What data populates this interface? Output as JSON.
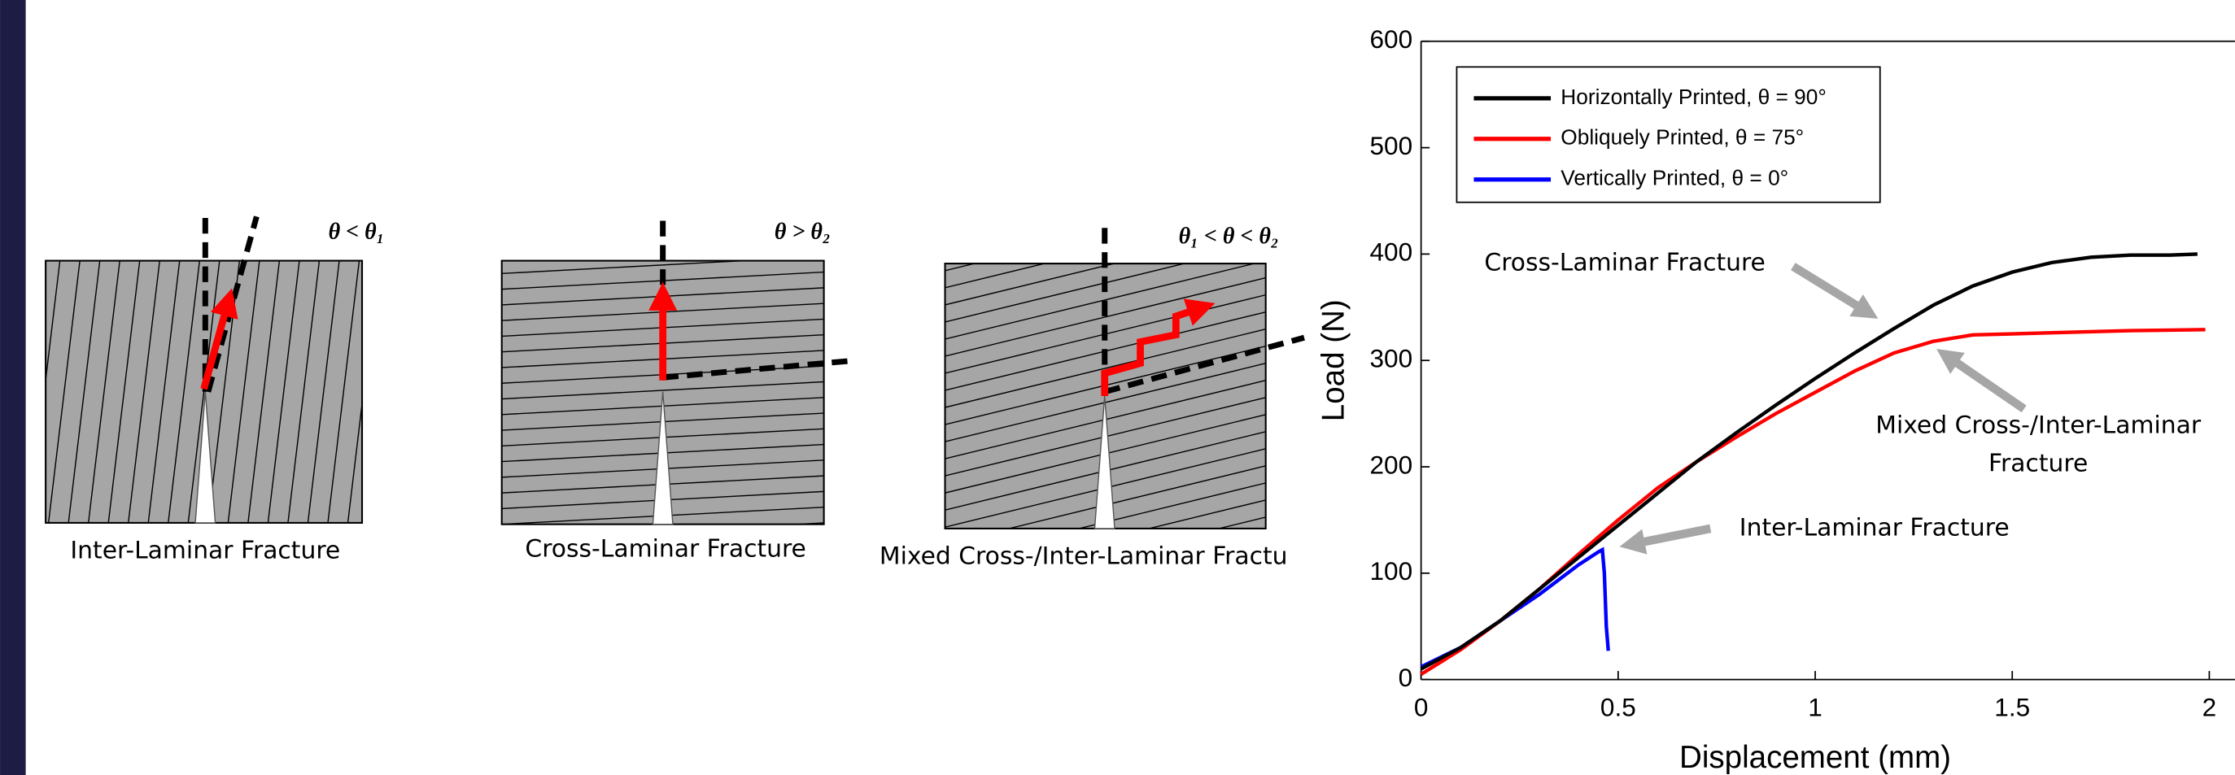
{
  "diagrams": [
    {
      "condition": "θ < θ₁",
      "caption": "Inter-Laminar Fracture"
    },
    {
      "condition": "θ > θ₂",
      "caption": "Cross-Laminar Fracture"
    },
    {
      "condition": "θ₁ < θ < θ₂",
      "caption": "Mixed Cross-/Inter-Laminar Fractu"
    }
  ],
  "chart_data": {
    "type": "line",
    "xlabel": "Displacement (mm)",
    "ylabel": "Load (N)",
    "xlim": [
      0,
      2.05
    ],
    "ylim": [
      0,
      600
    ],
    "xticks": [
      0,
      0.5,
      1,
      1.5,
      2
    ],
    "yticks": [
      0,
      100,
      200,
      300,
      400,
      500,
      600
    ],
    "grid": false,
    "legend": "upper left",
    "series": [
      {
        "name": "Horizontally Printed, θ = 90°",
        "color": "#000000",
        "x": [
          0,
          0.1,
          0.2,
          0.3,
          0.4,
          0.5,
          0.6,
          0.7,
          0.8,
          0.9,
          1.0,
          1.1,
          1.2,
          1.3,
          1.4,
          1.5,
          1.6,
          1.7,
          1.8,
          1.9,
          1.97
        ],
        "values": [
          10,
          30,
          55,
          85,
          115,
          145,
          175,
          205,
          232,
          258,
          283,
          307,
          330,
          352,
          370,
          383,
          392,
          397,
          399,
          399,
          400
        ]
      },
      {
        "name": "Obliquely Printed, θ = 75°",
        "color": "#ff0000",
        "x": [
          0,
          0.1,
          0.2,
          0.3,
          0.4,
          0.5,
          0.6,
          0.7,
          0.8,
          0.9,
          1.0,
          1.1,
          1.2,
          1.3,
          1.4,
          1.5,
          1.6,
          1.8,
          1.99
        ],
        "values": [
          5,
          28,
          55,
          85,
          118,
          150,
          180,
          205,
          228,
          250,
          270,
          290,
          307,
          318,
          324,
          325,
          326,
          328,
          329
        ]
      },
      {
        "name": "Vertically Printed, θ = 0°",
        "color": "#0000ff",
        "x": [
          0,
          0.1,
          0.2,
          0.3,
          0.4,
          0.45,
          0.46,
          0.465,
          0.47,
          0.475
        ],
        "values": [
          12,
          30,
          55,
          80,
          108,
          120,
          122,
          100,
          50,
          27
        ]
      }
    ],
    "annotations": [
      {
        "lines": [
          "Cross-Laminar Fracture"
        ]
      },
      {
        "lines": [
          "Mixed Cross-/Inter-Laminar",
          "Fracture"
        ]
      },
      {
        "lines": [
          "Inter-Laminar Fracture"
        ]
      }
    ]
  }
}
